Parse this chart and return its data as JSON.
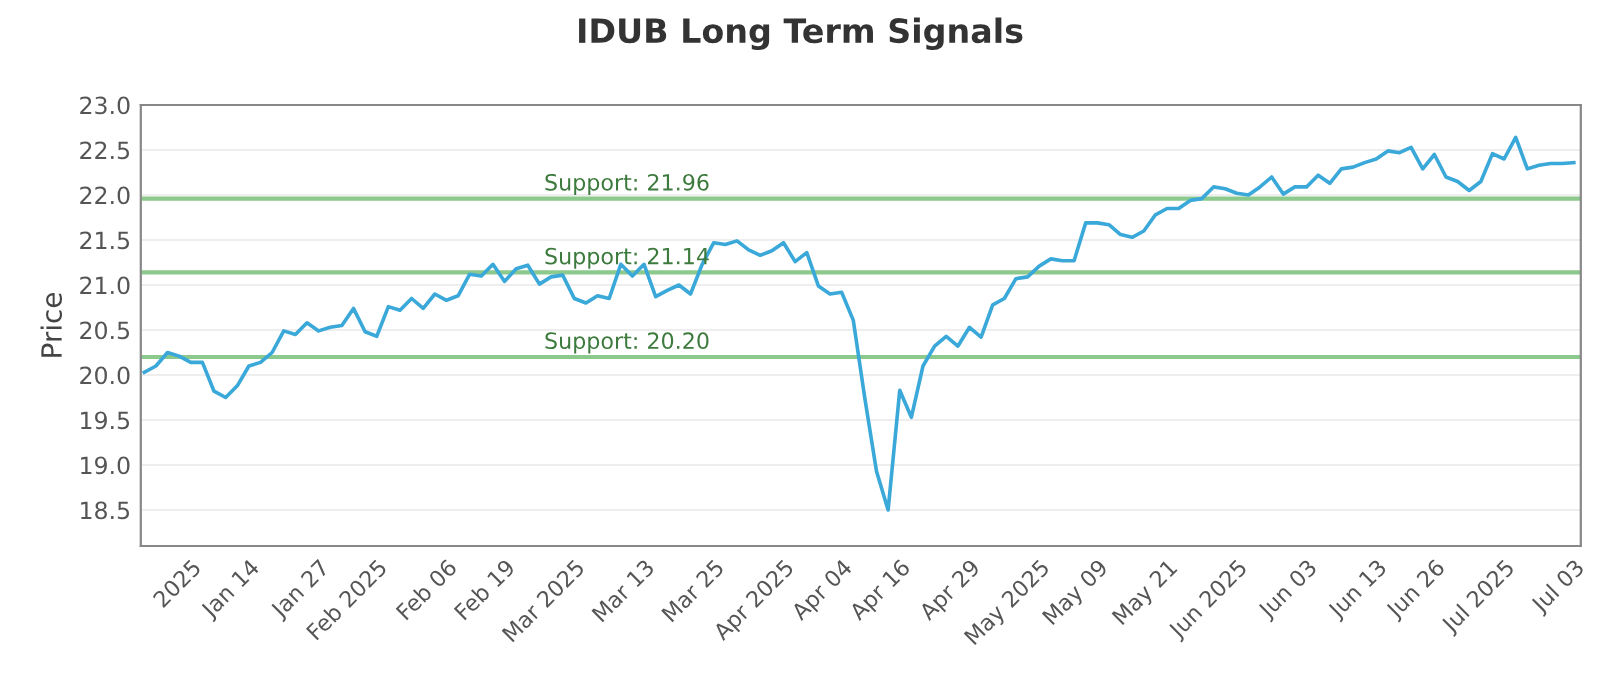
{
  "chart_data": {
    "type": "line",
    "title": "IDUB Long Term Signals",
    "ylabel": "Price",
    "categories": [
      null,
      null,
      null,
      null,
      "2025",
      null,
      null,
      null,
      null,
      "Jan 14",
      null,
      null,
      null,
      null,
      null,
      "Jan 27",
      null,
      null,
      null,
      null,
      "Feb 2025",
      null,
      null,
      null,
      null,
      null,
      "Feb 06",
      null,
      null,
      null,
      null,
      "Feb 19",
      null,
      null,
      null,
      null,
      null,
      "Mar 2025",
      null,
      null,
      null,
      null,
      null,
      "Mar 13",
      null,
      null,
      null,
      null,
      null,
      "Mar 25",
      null,
      null,
      null,
      null,
      null,
      "Apr 2025",
      null,
      null,
      null,
      null,
      "Apr 04",
      null,
      null,
      null,
      null,
      "Apr 16",
      null,
      null,
      null,
      null,
      null,
      "Apr 29",
      null,
      null,
      null,
      null,
      null,
      "May 2025",
      null,
      null,
      null,
      null,
      "May 09",
      null,
      null,
      null,
      null,
      null,
      "May 21",
      null,
      null,
      null,
      null,
      null,
      "Jun 2025",
      null,
      null,
      null,
      null,
      null,
      "Jun 03",
      null,
      null,
      null,
      null,
      null,
      "Jun 13",
      null,
      null,
      null,
      null,
      "Jun 26",
      null,
      null,
      null,
      null,
      null,
      "Jul 2025",
      null,
      null,
      null,
      null,
      null,
      "Jul 03"
    ],
    "series": [
      {
        "color": "#3aa8d8",
        "values": [
          20.03,
          20.1,
          20.25,
          20.21,
          20.14,
          20.14,
          19.82,
          19.75,
          19.88,
          20.1,
          20.14,
          20.25,
          20.49,
          20.45,
          20.58,
          20.49,
          20.53,
          20.55,
          20.74,
          20.48,
          20.43,
          20.76,
          20.72,
          20.85,
          20.74,
          20.9,
          20.83,
          20.88,
          21.12,
          21.1,
          21.23,
          21.04,
          21.18,
          21.22,
          21.01,
          21.09,
          21.11,
          20.85,
          20.8,
          20.88,
          20.85,
          21.23,
          21.1,
          21.23,
          20.87,
          20.94,
          21.0,
          20.9,
          21.23,
          21.47,
          21.45,
          21.49,
          21.39,
          21.33,
          21.38,
          21.47,
          21.26,
          21.36,
          20.99,
          20.9,
          20.92,
          20.61,
          19.74,
          18.93,
          18.5,
          19.83,
          19.53,
          20.1,
          20.32,
          20.43,
          20.32,
          20.53,
          20.42,
          20.78,
          20.85,
          21.07,
          21.09,
          21.21,
          21.29,
          21.27,
          21.27,
          21.69,
          21.69,
          21.67,
          21.56,
          21.53,
          21.6,
          21.78,
          21.85,
          21.85,
          21.94,
          21.96,
          22.09,
          22.07,
          22.02,
          22.0,
          22.09,
          22.2,
          22.01,
          22.09,
          22.09,
          22.22,
          22.13,
          22.29,
          22.31,
          22.36,
          22.4,
          22.49,
          22.47,
          22.53,
          22.29,
          22.45,
          22.2,
          22.15,
          22.05,
          22.15,
          22.46,
          22.4,
          22.64,
          22.29,
          22.33,
          22.35,
          22.35,
          22.36
        ]
      }
    ],
    "ylim": [
      18.1,
      23.0
    ],
    "yticks": [
      {
        "value": 18.5,
        "label": "18.5"
      },
      {
        "value": 19.0,
        "label": "19.0"
      },
      {
        "value": 19.5,
        "label": "19.5"
      },
      {
        "value": 20.0,
        "label": "20.0"
      },
      {
        "value": 20.5,
        "label": "20.5"
      },
      {
        "value": 21.0,
        "label": "21.0"
      },
      {
        "value": 21.5,
        "label": "21.5"
      },
      {
        "value": 22.0,
        "label": "22.0"
      },
      {
        "value": 22.5,
        "label": "22.5"
      },
      {
        "value": 23.0,
        "label": "23.0"
      }
    ],
    "ref_lines": [
      {
        "axis": "y",
        "value": 21.96,
        "label": "Support: 21.96",
        "color": "#8cc98c"
      },
      {
        "axis": "y",
        "value": 21.14,
        "label": "Support: 21.14",
        "color": "#8cc98c"
      },
      {
        "axis": "y",
        "value": 20.2,
        "label": "Support: 20.20",
        "color": "#8cc98c"
      }
    ],
    "grid": "y",
    "legend": false
  }
}
